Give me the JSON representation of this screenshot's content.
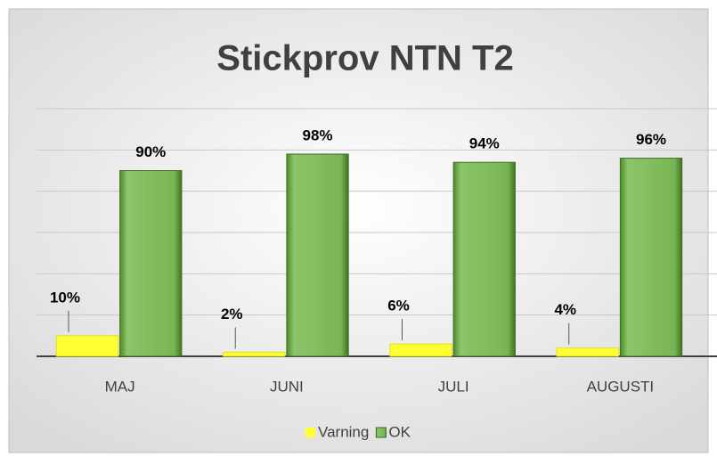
{
  "chart_data": {
    "type": "bar",
    "title": "Stickprov NTN T2",
    "categories": [
      "MAJ",
      "JUNI",
      "JULI",
      "AUGUSTI"
    ],
    "series": [
      {
        "name": "Varning",
        "color": "#ffff33",
        "values": [
          10,
          2,
          6,
          4
        ],
        "value_labels": [
          "10%",
          "2%",
          "6%",
          "4%"
        ]
      },
      {
        "name": "OK",
        "color": "#70ad47",
        "values": [
          90,
          98,
          94,
          96
        ],
        "value_labels": [
          "90%",
          "98%",
          "94%",
          "96%"
        ]
      }
    ],
    "ylim": [
      0,
      120
    ],
    "yticks": [
      0,
      20,
      40,
      60,
      80,
      100,
      120
    ],
    "grid": true,
    "legend": "bottom"
  }
}
